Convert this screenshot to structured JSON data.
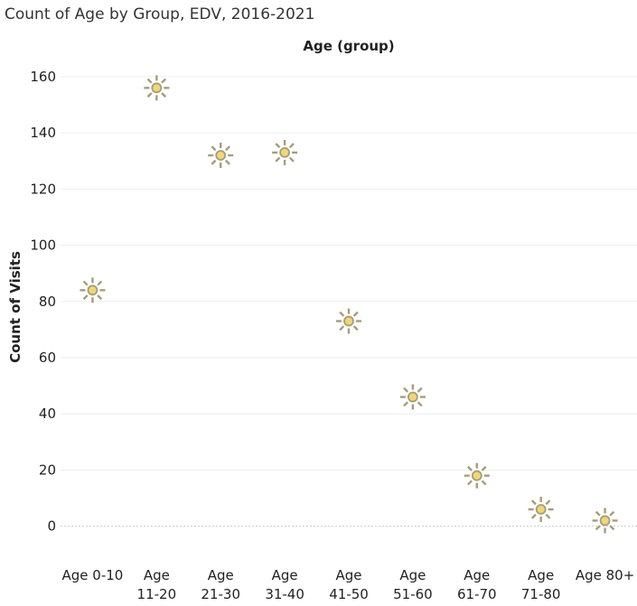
{
  "chart_data": {
    "type": "scatter",
    "title": "Count of Age by Group, EDV, 2016-2021",
    "column_header": "Age (group)",
    "ylabel": "Count of Visits",
    "ylim": [
      -12,
      168
    ],
    "yticks": [
      0,
      20,
      40,
      60,
      80,
      100,
      120,
      140,
      160
    ],
    "grid": true,
    "categories": [
      {
        "line1": "Age 0-10",
        "line2": ""
      },
      {
        "line1": "Age",
        "line2": "11-20"
      },
      {
        "line1": "Age",
        "line2": "21-30"
      },
      {
        "line1": "Age",
        "line2": "31-40"
      },
      {
        "line1": "Age",
        "line2": "41-50"
      },
      {
        "line1": "Age",
        "line2": "51-60"
      },
      {
        "line1": "Age",
        "line2": "61-70"
      },
      {
        "line1": "Age",
        "line2": "71-80"
      },
      {
        "line1": "Age 80+",
        "line2": ""
      }
    ],
    "values": [
      84,
      156,
      132,
      133,
      73,
      46,
      18,
      6,
      2
    ],
    "marker": "sun-icon",
    "colors": {
      "marker_fill": "#f2d675",
      "marker_stroke": "#a59d7a",
      "grid": "#eeeeee",
      "zero_line": "#cccccc"
    }
  }
}
